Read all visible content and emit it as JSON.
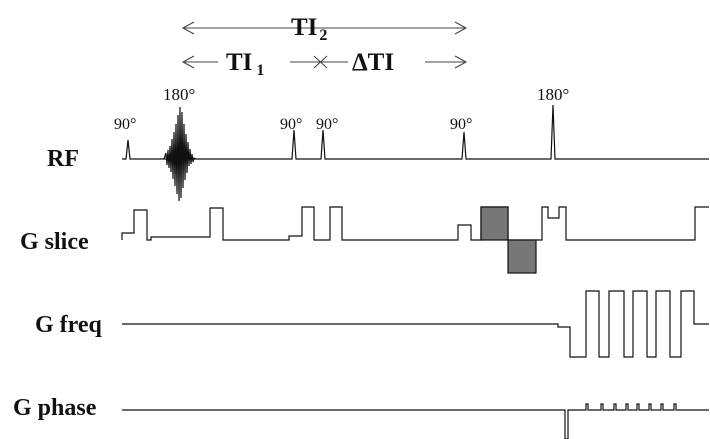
{
  "timing": {
    "ti2_label": "TI",
    "ti2_subscript": "2",
    "ti1_label": "TI",
    "ti1_subscript": "1",
    "delta_ti_label": "ΔTI"
  },
  "pulses": {
    "p1": "90°",
    "p2": "180°",
    "p3": "90°",
    "p4": "90°",
    "p5": "90°",
    "p6": "180°"
  },
  "rows": {
    "rf": "RF",
    "slice": "G slice",
    "freq": "G freq",
    "phase": "G phase"
  },
  "colors": {
    "line": "#111111",
    "arrow": "#444444",
    "shaded_lobe": "#777777"
  }
}
